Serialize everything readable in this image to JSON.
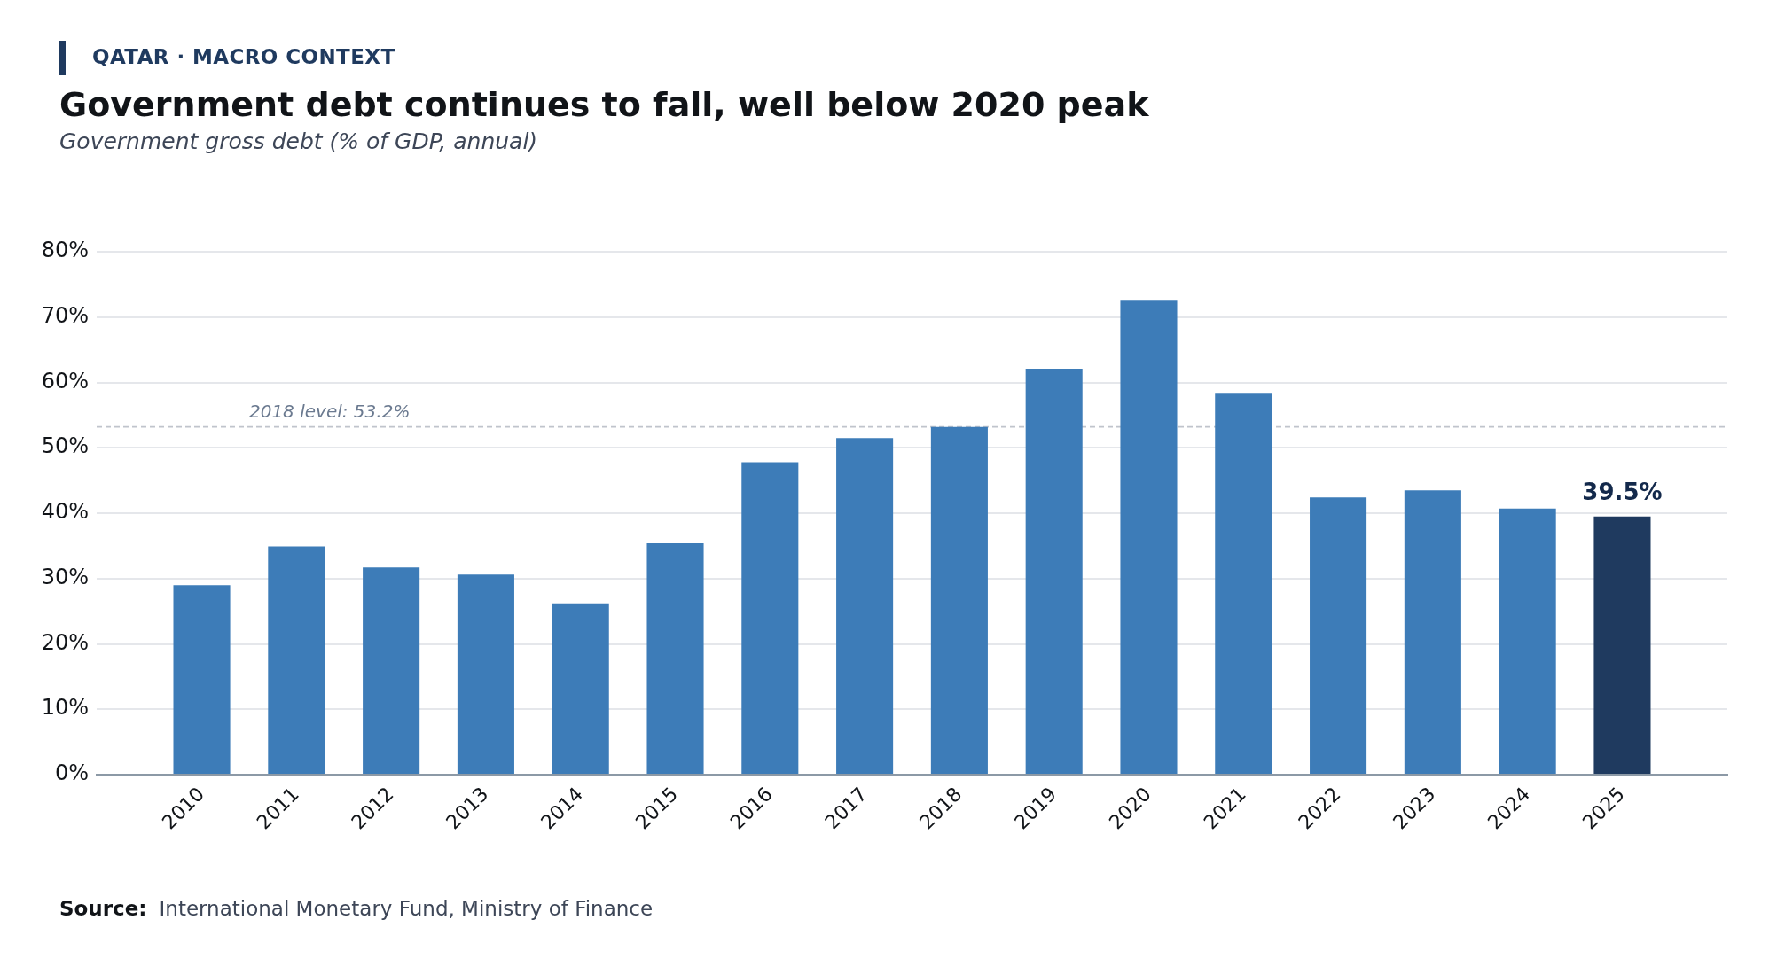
{
  "chart_data": {
    "type": "bar",
    "title": "Government debt continues to fall, well below 2020 peak",
    "subtitle": "Government gross debt (% of GDP, annual)",
    "annotations": [
      "QATAR · MACRO CONTEXT",
      "Source: International Monetary Fund, Ministry of Finance"
    ],
    "categories": [
      "2010",
      "2011",
      "2012",
      "2013",
      "2014",
      "2015",
      "2016",
      "2017",
      "2018",
      "2019",
      "2020",
      "2021",
      "2022",
      "2023",
      "2024",
      "2025"
    ],
    "values": [
      29.0,
      34.9,
      31.7,
      30.6,
      26.2,
      35.4,
      47.8,
      51.5,
      53.2,
      62.1,
      72.5,
      58.4,
      42.4,
      43.5,
      40.7,
      39.5
    ],
    "colors": [
      "#3d7cb8",
      "#3d7cb8",
      "#3d7cb8",
      "#3d7cb8",
      "#3d7cb8",
      "#3d7cb8",
      "#3d7cb8",
      "#3d7cb8",
      "#3d7cb8",
      "#3d7cb8",
      "#3d7cb8",
      "#3d7cb8",
      "#3d7cb8",
      "#3d7cb8",
      "#3d7cb8",
      "#1f3a5f"
    ],
    "value_labels": [
      null,
      null,
      null,
      null,
      null,
      null,
      null,
      null,
      null,
      null,
      null,
      null,
      null,
      null,
      null,
      "39.5%"
    ],
    "ylim": [
      0,
      80
    ],
    "yticks": [
      {
        "value": 0,
        "label": "0%"
      },
      {
        "value": 10,
        "label": "10%"
      },
      {
        "value": 20,
        "label": "20%"
      },
      {
        "value": 30,
        "label": "30%"
      },
      {
        "value": 40,
        "label": "40%"
      },
      {
        "value": 50,
        "label": "50%"
      },
      {
        "value": 60,
        "label": "60%"
      },
      {
        "value": 70,
        "label": "70%"
      },
      {
        "value": 80,
        "label": "80%"
      }
    ],
    "grid": "y",
    "legend": false,
    "ref_lines": [
      {
        "axis": "y",
        "value": 53.2,
        "label": "2018 level: 53.2%",
        "color": "#c0c4cc",
        "line_style": "dashed"
      }
    ]
  }
}
